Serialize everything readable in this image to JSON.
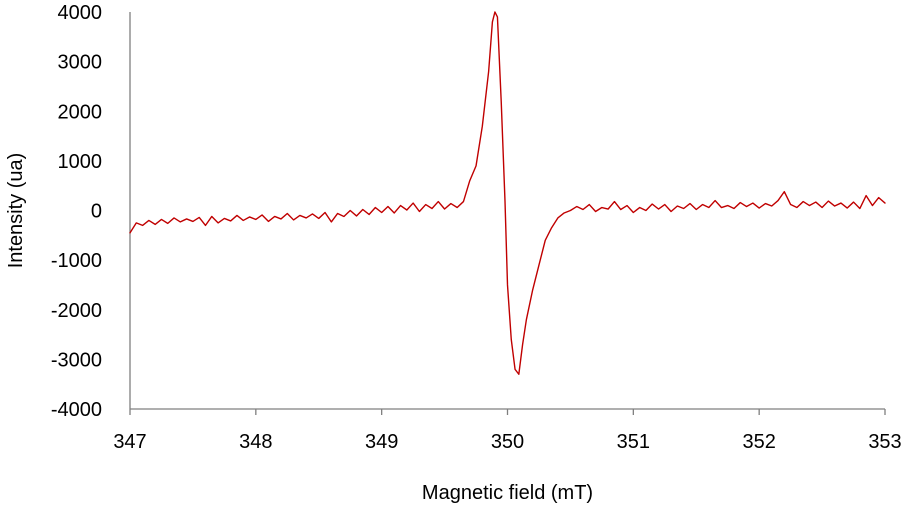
{
  "chart_data": {
    "type": "line",
    "title": "",
    "xlabel": "Magnetic field (mT)",
    "ylabel": "Intensity (ua)",
    "xlim": [
      347,
      353
    ],
    "ylim": [
      -4000,
      4000
    ],
    "x_ticks": [
      347,
      348,
      349,
      350,
      351,
      352,
      353
    ],
    "y_ticks": [
      4000,
      3000,
      2000,
      1000,
      0,
      -1000,
      -2000,
      -3000,
      -4000
    ],
    "x_tick_labels": [
      "347",
      "348",
      "349",
      "350",
      "351",
      "352",
      "353"
    ],
    "y_tick_labels": [
      "4000",
      "3000",
      "2000",
      "1000",
      "0",
      "-1000",
      "-2000",
      "-3000",
      "-4000"
    ],
    "grid": false,
    "legend": "none",
    "series": [
      {
        "color": "#c00000",
        "points": [
          [
            347.0,
            -450
          ],
          [
            347.05,
            -250
          ],
          [
            347.1,
            -300
          ],
          [
            347.15,
            -200
          ],
          [
            347.2,
            -280
          ],
          [
            347.25,
            -180
          ],
          [
            347.3,
            -260
          ],
          [
            347.35,
            -150
          ],
          [
            347.4,
            -230
          ],
          [
            347.45,
            -170
          ],
          [
            347.5,
            -220
          ],
          [
            347.55,
            -140
          ],
          [
            347.6,
            -300
          ],
          [
            347.65,
            -120
          ],
          [
            347.7,
            -250
          ],
          [
            347.75,
            -160
          ],
          [
            347.8,
            -210
          ],
          [
            347.85,
            -100
          ],
          [
            347.9,
            -200
          ],
          [
            347.95,
            -130
          ],
          [
            348.0,
            -180
          ],
          [
            348.05,
            -90
          ],
          [
            348.1,
            -220
          ],
          [
            348.15,
            -120
          ],
          [
            348.2,
            -170
          ],
          [
            348.25,
            -60
          ],
          [
            348.3,
            -190
          ],
          [
            348.35,
            -100
          ],
          [
            348.4,
            -150
          ],
          [
            348.45,
            -70
          ],
          [
            348.5,
            -160
          ],
          [
            348.55,
            -40
          ],
          [
            348.6,
            -230
          ],
          [
            348.65,
            -60
          ],
          [
            348.7,
            -120
          ],
          [
            348.75,
            0
          ],
          [
            348.8,
            -110
          ],
          [
            348.85,
            20
          ],
          [
            348.9,
            -80
          ],
          [
            348.95,
            60
          ],
          [
            349.0,
            -40
          ],
          [
            349.05,
            80
          ],
          [
            349.1,
            -50
          ],
          [
            349.15,
            100
          ],
          [
            349.2,
            10
          ],
          [
            349.25,
            150
          ],
          [
            349.3,
            -20
          ],
          [
            349.35,
            120
          ],
          [
            349.4,
            40
          ],
          [
            349.45,
            180
          ],
          [
            349.5,
            30
          ],
          [
            349.55,
            140
          ],
          [
            349.6,
            60
          ],
          [
            349.65,
            180
          ],
          [
            349.7,
            600
          ],
          [
            349.75,
            900
          ],
          [
            349.8,
            1700
          ],
          [
            349.85,
            2800
          ],
          [
            349.88,
            3800
          ],
          [
            349.9,
            4000
          ],
          [
            349.92,
            3900
          ],
          [
            349.95,
            2200
          ],
          [
            349.98,
            200
          ],
          [
            350.0,
            -1500
          ],
          [
            350.03,
            -2600
          ],
          [
            350.06,
            -3200
          ],
          [
            350.09,
            -3300
          ],
          [
            350.12,
            -2700
          ],
          [
            350.15,
            -2200
          ],
          [
            350.2,
            -1600
          ],
          [
            350.25,
            -1100
          ],
          [
            350.3,
            -600
          ],
          [
            350.35,
            -350
          ],
          [
            350.4,
            -150
          ],
          [
            350.45,
            -50
          ],
          [
            350.5,
            0
          ],
          [
            350.55,
            80
          ],
          [
            350.6,
            20
          ],
          [
            350.65,
            120
          ],
          [
            350.7,
            -20
          ],
          [
            350.75,
            60
          ],
          [
            350.8,
            30
          ],
          [
            350.85,
            180
          ],
          [
            350.9,
            20
          ],
          [
            350.95,
            100
          ],
          [
            351.0,
            -40
          ],
          [
            351.05,
            60
          ],
          [
            351.1,
            0
          ],
          [
            351.15,
            130
          ],
          [
            351.2,
            30
          ],
          [
            351.25,
            120
          ],
          [
            351.3,
            -20
          ],
          [
            351.35,
            90
          ],
          [
            351.4,
            40
          ],
          [
            351.45,
            140
          ],
          [
            351.5,
            20
          ],
          [
            351.55,
            120
          ],
          [
            351.6,
            60
          ],
          [
            351.65,
            200
          ],
          [
            351.7,
            60
          ],
          [
            351.75,
            100
          ],
          [
            351.8,
            40
          ],
          [
            351.85,
            160
          ],
          [
            351.9,
            80
          ],
          [
            351.95,
            150
          ],
          [
            352.0,
            50
          ],
          [
            352.05,
            140
          ],
          [
            352.1,
            90
          ],
          [
            352.15,
            200
          ],
          [
            352.2,
            380
          ],
          [
            352.25,
            120
          ],
          [
            352.3,
            60
          ],
          [
            352.35,
            180
          ],
          [
            352.4,
            100
          ],
          [
            352.45,
            170
          ],
          [
            352.5,
            60
          ],
          [
            352.55,
            190
          ],
          [
            352.6,
            90
          ],
          [
            352.65,
            150
          ],
          [
            352.7,
            50
          ],
          [
            352.75,
            170
          ],
          [
            352.8,
            40
          ],
          [
            352.85,
            300
          ],
          [
            352.9,
            100
          ],
          [
            352.95,
            260
          ],
          [
            353.0,
            150
          ]
        ]
      }
    ]
  }
}
